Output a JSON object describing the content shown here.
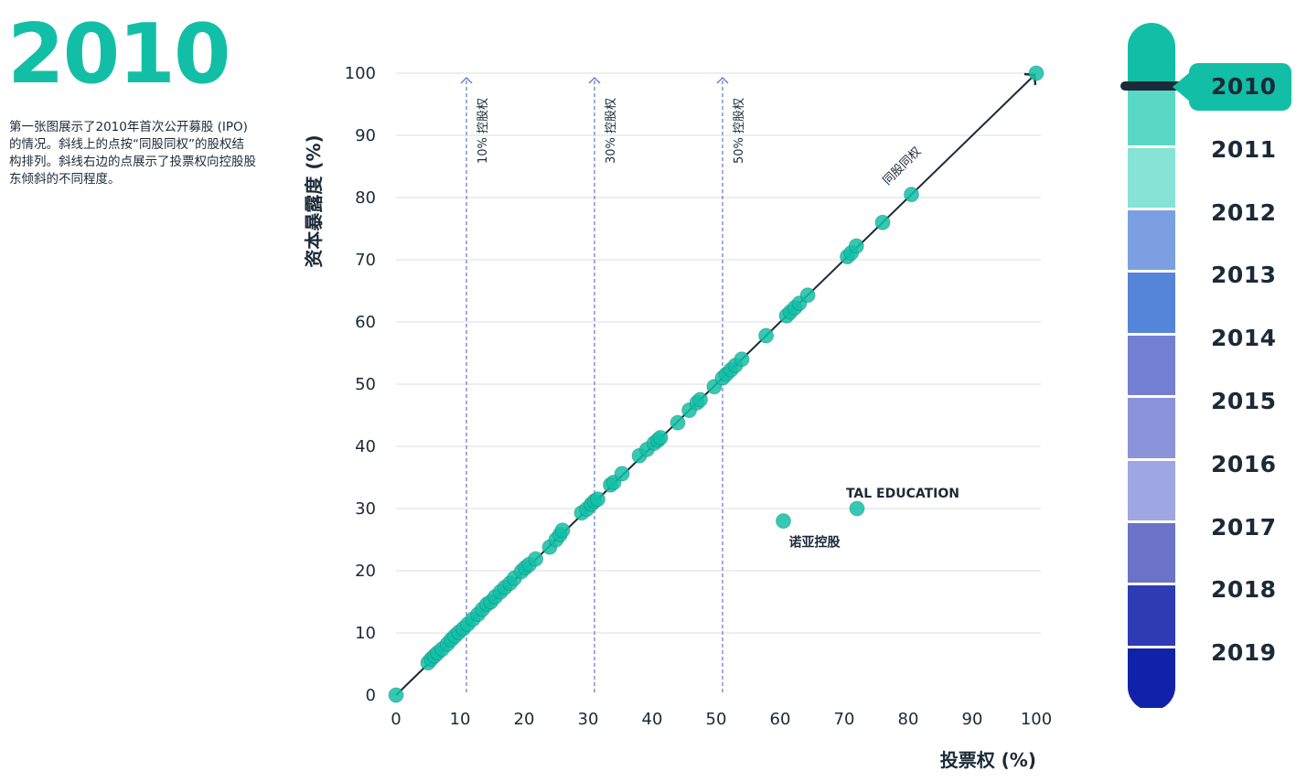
{
  "header": {
    "year": "2010",
    "description": "第一张图展示了2010年首次公开募股 (IPO) 的情况。斜线上的点按“同股同权”的股权结构排列。斜线右边的点展示了投票权向控股股东倾斜的不同程度。"
  },
  "chart_data": {
    "type": "scatter",
    "xlabel": "投票权 (%)",
    "ylabel": "资本暴露度 (%)",
    "xlim": [
      0,
      100
    ],
    "ylim": [
      0,
      100
    ],
    "xticks": [
      "0",
      "10",
      "20",
      "30",
      "40",
      "50",
      "60",
      "70",
      "80",
      "90",
      "100"
    ],
    "yticks": [
      "0",
      "10",
      "20",
      "30",
      "40",
      "50",
      "60",
      "70",
      "80",
      "90",
      "100"
    ],
    "grid": "horizontal",
    "diagonal_label": "同股同权",
    "reference_lines": [
      {
        "x": 11,
        "label": "10% 控股权"
      },
      {
        "x": 31,
        "label": "30% 控股权"
      },
      {
        "x": 51,
        "label": "50% 控股权"
      }
    ],
    "point_color": "#12bfa6",
    "annotations": [
      {
        "x": 72,
        "y": 30,
        "label": "TAL EDUCATION"
      },
      {
        "x": 60.5,
        "y": 28,
        "label": "诺亚控股"
      }
    ],
    "points": [
      [
        0,
        0
      ],
      [
        5,
        5.2
      ],
      [
        5.5,
        5.8
      ],
      [
        6,
        6.3
      ],
      [
        6.5,
        6.8
      ],
      [
        7.2,
        7.4
      ],
      [
        8,
        8.2
      ],
      [
        8.6,
        8.9
      ],
      [
        9.2,
        9.5
      ],
      [
        9.8,
        10.1
      ],
      [
        10.5,
        10.7
      ],
      [
        11.2,
        11.4
      ],
      [
        12,
        12.2
      ],
      [
        12.8,
        13
      ],
      [
        13.5,
        13.8
      ],
      [
        14.2,
        14.6
      ],
      [
        14.8,
        15
      ],
      [
        15.5,
        15.8
      ],
      [
        16.3,
        16.6
      ],
      [
        17,
        17.3
      ],
      [
        17.8,
        18
      ],
      [
        18.5,
        18.8
      ],
      [
        19.6,
        19.9
      ],
      [
        20.2,
        20.5
      ],
      [
        20.8,
        21
      ],
      [
        21.8,
        21.9
      ],
      [
        24,
        23.8
      ],
      [
        25,
        25
      ],
      [
        25.6,
        25.8
      ],
      [
        26,
        26.5
      ],
      [
        29,
        29.3
      ],
      [
        29.8,
        29.9
      ],
      [
        30.5,
        30.7
      ],
      [
        31,
        31.2
      ],
      [
        31.5,
        31.5
      ],
      [
        33.5,
        33.8
      ],
      [
        34,
        34.2
      ],
      [
        35.3,
        35.6
      ],
      [
        38,
        38.5
      ],
      [
        39.2,
        39.5
      ],
      [
        40.3,
        40.5
      ],
      [
        40.9,
        41
      ],
      [
        41.3,
        41.4
      ],
      [
        44,
        43.8
      ],
      [
        45.8,
        45.8
      ],
      [
        47,
        47
      ],
      [
        47.5,
        47.5
      ],
      [
        49.7,
        49.6
      ],
      [
        51,
        51
      ],
      [
        51.6,
        51.6
      ],
      [
        52.3,
        52.3
      ],
      [
        53,
        53
      ],
      [
        54,
        54
      ],
      [
        57.8,
        57.8
      ],
      [
        61,
        61
      ],
      [
        61.6,
        61.6
      ],
      [
        62.3,
        62.3
      ],
      [
        63,
        63
      ],
      [
        64.3,
        64.3
      ],
      [
        70.5,
        70.5
      ],
      [
        71.1,
        71.1
      ],
      [
        71.9,
        72.2
      ],
      [
        76,
        76
      ],
      [
        80.5,
        80.5
      ],
      [
        100,
        100
      ],
      [
        60.5,
        28
      ],
      [
        72,
        30
      ]
    ]
  },
  "timeline": {
    "active_year": "2010",
    "years": [
      "2010",
      "2011",
      "2012",
      "2013",
      "2014",
      "2015",
      "2016",
      "2017",
      "2018",
      "2019"
    ],
    "segment_colors": [
      "#12bfa6",
      "#5ad8c6",
      "#86e3d6",
      "#7b9fe0",
      "#5585d8",
      "#737fd0",
      "#8b93db",
      "#9ea7e2",
      "#6a73c7",
      "#2e3cb3",
      "#1222a8"
    ]
  }
}
